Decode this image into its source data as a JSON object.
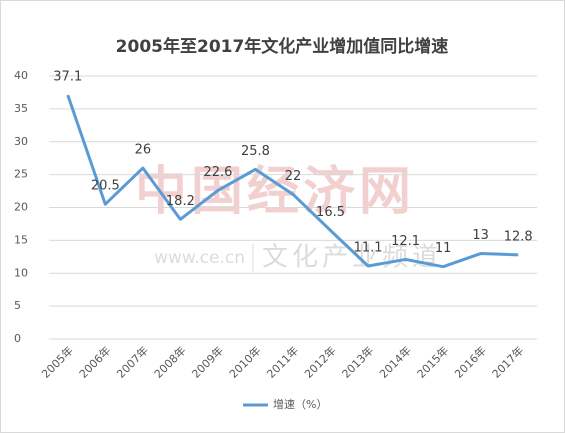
{
  "chart_data": {
    "type": "line",
    "title": "2005年至2017年文化产业增加值同比增速",
    "categories": [
      "2005年",
      "2006年",
      "2007年",
      "2008年",
      "2009年",
      "2010年",
      "2011年",
      "2012年",
      "2013年",
      "2014年",
      "2015年",
      "2016年",
      "2017年"
    ],
    "series": [
      {
        "name": "增速（%）",
        "color": "#5b9bd5",
        "values": [
          37.1,
          20.5,
          26,
          18.2,
          22.6,
          25.8,
          22,
          16.5,
          11.1,
          12.1,
          11,
          13,
          12.8
        ]
      }
    ],
    "ylim": [
      0,
      40
    ],
    "yticks": [
      0,
      5,
      10,
      15,
      20,
      25,
      30,
      35,
      40
    ],
    "grid": true,
    "legend": "bottom",
    "watermark": {
      "logo": "中国经济网",
      "site": "www.ce.cn",
      "channel": "文化产业频道"
    }
  }
}
